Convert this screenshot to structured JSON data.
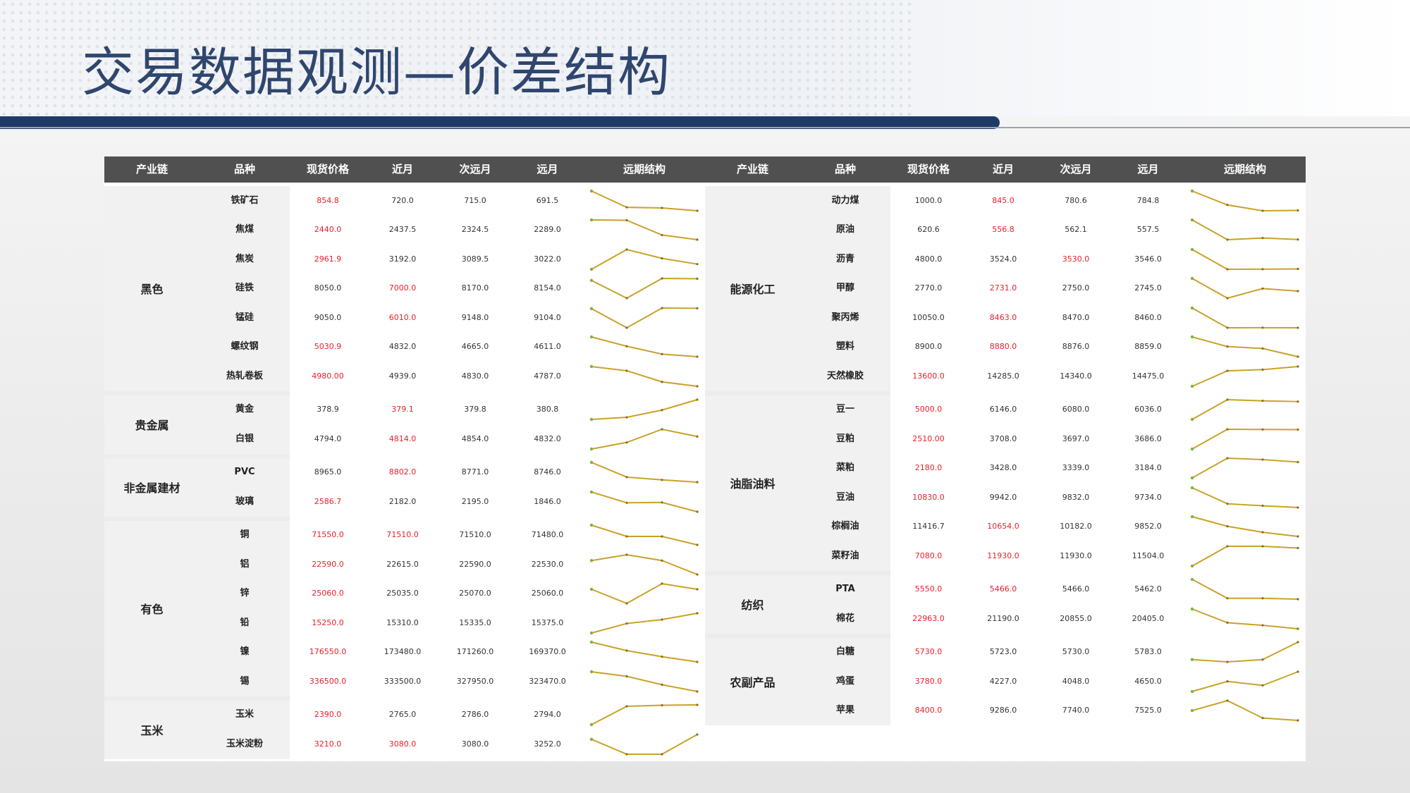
{
  "title": "交易数据观测—价差结构",
  "columns": [
    "产业链",
    "品种",
    "现货价格",
    "近月",
    "次远月",
    "远月",
    "远期结构"
  ],
  "colors": {
    "line": "#c9a227",
    "endpoint": "#7cb342",
    "highlight": "#e8212b",
    "header_bg": "#505050"
  },
  "chart_data": [
    {
      "type": "table",
      "columns": [
        "产业链",
        "品种",
        "现货价格",
        "近月",
        "次远月",
        "远月",
        "远期结构"
      ],
      "groups": [
        {
          "name": "黑色",
          "rows": [
            {
              "name": "铁矿石",
              "spot": "854.8",
              "near": "720.0",
              "next": "715.0",
              "far": "691.5",
              "red": 1
            },
            {
              "name": "焦煤",
              "spot": "2440.0",
              "near": "2437.5",
              "next": "2324.5",
              "far": "2289.0",
              "red": 1
            },
            {
              "name": "焦炭",
              "spot": "2961.9",
              "near": "3192.0",
              "next": "3089.5",
              "far": "3022.0",
              "red": 1
            },
            {
              "name": "硅铁",
              "spot": "8050.0",
              "near": "7000.0",
              "next": "8170.0",
              "far": "8154.0",
              "red": 2
            },
            {
              "name": "锰硅",
              "spot": "9050.0",
              "near": "6010.0",
              "next": "9148.0",
              "far": "9104.0",
              "red": 2
            },
            {
              "name": "螺纹钢",
              "spot": "5030.9",
              "near": "4832.0",
              "next": "4665.0",
              "far": "4611.0",
              "red": 1
            },
            {
              "name": "热轧卷板",
              "spot": "4980.00",
              "near": "4939.0",
              "next": "4830.0",
              "far": "4787.0",
              "red": 1
            }
          ]
        },
        {
          "name": "贵金属",
          "rows": [
            {
              "name": "黄金",
              "spot": "378.9",
              "near": "379.1",
              "next": "379.8",
              "far": "380.8",
              "red": 2
            },
            {
              "name": "白银",
              "spot": "4794.0",
              "near": "4814.0",
              "next": "4854.0",
              "far": "4832.0",
              "red": 2
            }
          ]
        },
        {
          "name": "非金属建材",
          "rows": [
            {
              "name": "PVC",
              "spot": "8965.0",
              "near": "8802.0",
              "next": "8771.0",
              "far": "8746.0",
              "red": 2
            },
            {
              "name": "玻璃",
              "spot": "2586.7",
              "near": "2182.0",
              "next": "2195.0",
              "far": "1846.0",
              "red": 1
            }
          ]
        },
        {
          "name": "有色",
          "rows": [
            {
              "name": "铜",
              "spot": "71550.0",
              "near": "71510.0",
              "next": "71510.0",
              "far": "71480.0",
              "red": [
                1,
                2
              ]
            },
            {
              "name": "铝",
              "spot": "22590.0",
              "near": "22615.0",
              "next": "22590.0",
              "far": "22530.0",
              "red": 1
            },
            {
              "name": "锌",
              "spot": "25060.0",
              "near": "25035.0",
              "next": "25070.0",
              "far": "25060.0",
              "red": 1
            },
            {
              "name": "铅",
              "spot": "15250.0",
              "near": "15310.0",
              "next": "15335.0",
              "far": "15375.0",
              "red": 1
            },
            {
              "name": "镍",
              "spot": "176550.0",
              "near": "173480.0",
              "next": "171260.0",
              "far": "169370.0",
              "red": 1
            },
            {
              "name": "锡",
              "spot": "336500.0",
              "near": "333500.0",
              "next": "327950.0",
              "far": "323470.0",
              "red": 1
            }
          ]
        },
        {
          "name": "玉米",
          "rows": [
            {
              "name": "玉米",
              "spot": "2390.0",
              "near": "2765.0",
              "next": "2786.0",
              "far": "2794.0",
              "red": 1
            },
            {
              "name": "玉米淀粉",
              "spot": "3210.0",
              "near": "3080.0",
              "next": "3080.0",
              "far": "3252.0",
              "red": [
                1,
                2
              ]
            }
          ]
        }
      ]
    },
    {
      "type": "table",
      "columns": [
        "产业链",
        "品种",
        "现货价格",
        "近月",
        "次远月",
        "远月",
        "远期结构"
      ],
      "groups": [
        {
          "name": "能源化工",
          "rows": [
            {
              "name": "动力煤",
              "spot": "1000.0",
              "near": "845.0",
              "next": "780.6",
              "far": "784.8",
              "red": 2
            },
            {
              "name": "原油",
              "spot": "620.6",
              "near": "556.8",
              "next": "562.1",
              "far": "557.5",
              "red": 2
            },
            {
              "name": "沥青",
              "spot": "4800.0",
              "near": "3524.0",
              "next": "3530.0",
              "far": "3546.0",
              "red": 3
            },
            {
              "name": "甲醇",
              "spot": "2770.0",
              "near": "2731.0",
              "next": "2750.0",
              "far": "2745.0",
              "red": 2
            },
            {
              "name": "聚丙烯",
              "spot": "10050.0",
              "near": "8463.0",
              "next": "8470.0",
              "far": "8460.0",
              "red": 2
            },
            {
              "name": "塑料",
              "spot": "8900.0",
              "near": "8880.0",
              "next": "8876.0",
              "far": "8859.0",
              "red": 2
            },
            {
              "name": "天然橡胶",
              "spot": "13600.0",
              "near": "14285.0",
              "next": "14340.0",
              "far": "14475.0",
              "red": 1
            }
          ]
        },
        {
          "name": "油脂油料",
          "rows": [
            {
              "name": "豆一",
              "spot": "5000.0",
              "near": "6146.0",
              "next": "6080.0",
              "far": "6036.0",
              "red": 1
            },
            {
              "name": "豆粕",
              "spot": "2510.00",
              "near": "3708.0",
              "next": "3697.0",
              "far": "3686.0",
              "red": 1
            },
            {
              "name": "菜粕",
              "spot": "2180.0",
              "near": "3428.0",
              "next": "3339.0",
              "far": "3184.0",
              "red": 1
            },
            {
              "name": "豆油",
              "spot": "10830.0",
              "near": "9942.0",
              "next": "9832.0",
              "far": "9734.0",
              "red": 1
            },
            {
              "name": "棕榈油",
              "spot": "11416.7",
              "near": "10654.0",
              "next": "10182.0",
              "far": "9852.0",
              "red": 2
            },
            {
              "name": "菜籽油",
              "spot": "7080.0",
              "near": "11930.0",
              "next": "11930.0",
              "far": "11504.0",
              "red": [
                1,
                2
              ]
            }
          ]
        },
        {
          "name": "纺织",
          "rows": [
            {
              "name": "PTA",
              "spot": "5550.0",
              "near": "5466.0",
              "next": "5466.0",
              "far": "5462.0",
              "red": [
                1,
                2
              ]
            },
            {
              "name": "棉花",
              "spot": "22963.0",
              "near": "21190.0",
              "next": "20855.0",
              "far": "20405.0",
              "red": 1
            }
          ]
        },
        {
          "name": "农副产品",
          "rows": [
            {
              "name": "白糖",
              "spot": "5730.0",
              "near": "5723.0",
              "next": "5730.0",
              "far": "5783.0",
              "red": 1
            },
            {
              "name": "鸡蛋",
              "spot": "3780.0",
              "near": "4227.0",
              "next": "4048.0",
              "far": "4650.0",
              "red": 1
            },
            {
              "name": "苹果",
              "spot": "8400.0",
              "near": "9286.0",
              "next": "7740.0",
              "far": "7525.0",
              "red": 1
            }
          ]
        }
      ]
    }
  ]
}
